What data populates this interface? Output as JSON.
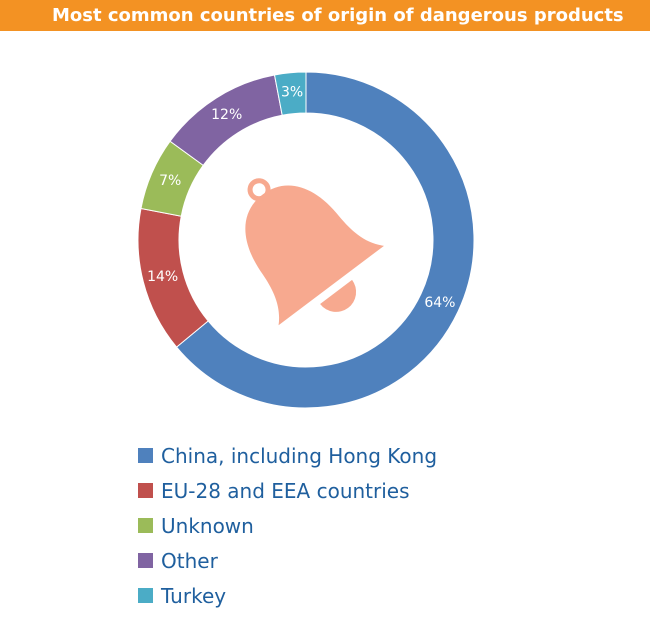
{
  "chart_data": {
    "type": "pie",
    "title": "Most common countries of origin of dangerous products",
    "categories": [
      "China, including Hong Kong",
      "EU-28 and EEA countries",
      "Unknown",
      "Other",
      "Turkey"
    ],
    "values": [
      64,
      14,
      7,
      12,
      3
    ],
    "labels": [
      "64%",
      "14%",
      "7%",
      "12%",
      "3%"
    ],
    "colors": [
      "#4f81bd",
      "#c0504d",
      "#9bbb59",
      "#8064a2",
      "#4bacc6"
    ],
    "unit": "%",
    "legend_position": "bottom",
    "center_icon": "bell-icon",
    "center_icon_color": "#f7a98f"
  },
  "legend": {
    "items": [
      {
        "label": "China, including Hong Kong",
        "color": "#4f81bd"
      },
      {
        "label": "EU-28 and EEA countries",
        "color": "#c0504d"
      },
      {
        "label": "Unknown",
        "color": "#9bbb59"
      },
      {
        "label": "Other",
        "color": "#8064a2"
      },
      {
        "label": "Turkey",
        "color": "#4bacc6"
      }
    ]
  },
  "colors": {
    "header_background": "#f39223",
    "header_text": "#ffffff",
    "legend_text": "#1f5f9e"
  }
}
